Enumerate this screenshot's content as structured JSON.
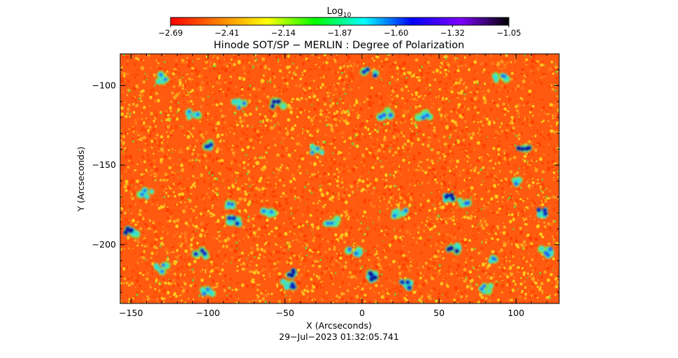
{
  "chart_data": {
    "type": "heatmap",
    "title": "Hinode SOT/SP − MERLIN : Degree of Polarization",
    "xlabel": "X (Arcseconds)",
    "ylabel": "Y (Arcseconds)",
    "timestamp": "29−Jul−2023 01:32:05.741",
    "colorbar": {
      "label_base": "Log",
      "label_sub": "10",
      "range": [
        -2.69,
        -1.05
      ],
      "ticks": [
        "−2.69",
        "−2.41",
        "−2.14",
        "−1.87",
        "−1.60",
        "−1.32",
        "−1.05"
      ],
      "colormap": [
        "#ff0000",
        "#ff8000",
        "#ffff00",
        "#00ff00",
        "#00ffff",
        "#0000ff",
        "#8000ff",
        "#000000"
      ]
    },
    "xlim": [
      -157,
      128
    ],
    "ylim": [
      -237,
      -80
    ],
    "xticks": [
      {
        "value": -150,
        "label": "−150"
      },
      {
        "value": -100,
        "label": "−100"
      },
      {
        "value": -50,
        "label": "−50"
      },
      {
        "value": 0,
        "label": "0"
      },
      {
        "value": 50,
        "label": "50"
      },
      {
        "value": 100,
        "label": "100"
      }
    ],
    "yticks": [
      {
        "value": -100,
        "label": "−100"
      },
      {
        "value": -150,
        "label": "−150"
      },
      {
        "value": -200,
        "label": "−200"
      }
    ],
    "background_color": "#ff5a10",
    "texture_colors": [
      "#ff3a00",
      "#ff7a18",
      "#ffb020",
      "#ffd820",
      "#ff4800"
    ],
    "features": [
      {
        "x": 5,
        "y": -92,
        "level": 0.8
      },
      {
        "x": -55,
        "y": -112,
        "level": 0.9
      },
      {
        "x": -80,
        "y": -112,
        "level": 0.5
      },
      {
        "x": -110,
        "y": -118,
        "level": 0.4
      },
      {
        "x": 15,
        "y": -118,
        "level": 0.7
      },
      {
        "x": 40,
        "y": -118,
        "level": 0.6
      },
      {
        "x": -98,
        "y": -137,
        "level": 0.85
      },
      {
        "x": 105,
        "y": -140,
        "level": 0.9
      },
      {
        "x": -30,
        "y": -140,
        "level": 0.4
      },
      {
        "x": 55,
        "y": -170,
        "level": 0.9
      },
      {
        "x": 65,
        "y": -173,
        "level": 0.6
      },
      {
        "x": -85,
        "y": -175,
        "level": 0.5
      },
      {
        "x": -83,
        "y": -185,
        "level": 0.85
      },
      {
        "x": -60,
        "y": -180,
        "level": 0.4
      },
      {
        "x": 118,
        "y": -180,
        "level": 0.85
      },
      {
        "x": 25,
        "y": -180,
        "level": 0.5
      },
      {
        "x": -150,
        "y": -192,
        "level": 0.9
      },
      {
        "x": 60,
        "y": -203,
        "level": 0.95
      },
      {
        "x": -105,
        "y": -205,
        "level": 0.85
      },
      {
        "x": -5,
        "y": -205,
        "level": 0.6
      },
      {
        "x": 120,
        "y": -205,
        "level": 0.7
      },
      {
        "x": -45,
        "y": -218,
        "level": 0.9
      },
      {
        "x": -48,
        "y": -225,
        "level": 0.8
      },
      {
        "x": 5,
        "y": -220,
        "level": 0.95
      },
      {
        "x": 30,
        "y": -225,
        "level": 0.85
      },
      {
        "x": -100,
        "y": -230,
        "level": 0.5
      },
      {
        "x": -130,
        "y": -215,
        "level": 0.4
      },
      {
        "x": 85,
        "y": -210,
        "level": 0.4
      },
      {
        "x": -140,
        "y": -168,
        "level": 0.4
      },
      {
        "x": -130,
        "y": -95,
        "level": 0.4
      },
      {
        "x": 90,
        "y": -95,
        "level": 0.4
      },
      {
        "x": 80,
        "y": -228,
        "level": 0.5
      },
      {
        "x": -20,
        "y": -185,
        "level": 0.4
      },
      {
        "x": 100,
        "y": -160,
        "level": 0.45
      }
    ]
  }
}
